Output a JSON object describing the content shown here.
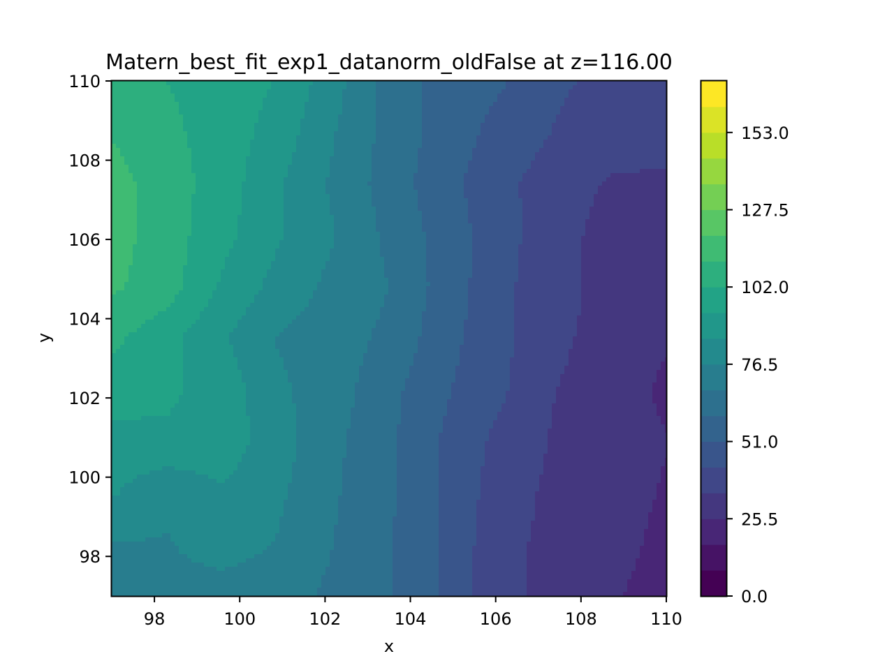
{
  "chart_data": {
    "type": "heatmap",
    "subtype": "filled-contour",
    "title": "Matern_best_fit_exp1_datanorm_oldFalse at z=116.00",
    "xlabel": "x",
    "ylabel": "y",
    "xlim": [
      97,
      110
    ],
    "ylim": [
      97,
      110
    ],
    "x_ticks": [
      98,
      100,
      102,
      104,
      106,
      108,
      110
    ],
    "x_tick_labels": [
      "98",
      "100",
      "102",
      "104",
      "106",
      "108",
      "110"
    ],
    "y_ticks": [
      98,
      100,
      102,
      104,
      106,
      108,
      110
    ],
    "y_tick_labels": [
      "98",
      "100",
      "102",
      "104",
      "106",
      "108",
      "110"
    ],
    "colormap": "viridis",
    "colorbar": {
      "range": [
        0,
        170
      ],
      "levels": [
        0,
        8.5,
        17,
        25.5,
        34,
        42.5,
        51,
        59.5,
        68,
        76.5,
        85,
        93.5,
        102,
        110.5,
        119,
        127.5,
        136,
        144.5,
        153,
        161.5,
        170
      ],
      "ticks": [
        0,
        25.5,
        51,
        76.5,
        102,
        127.5,
        153
      ],
      "tick_labels": [
        "0.0",
        "25.5",
        "51.0",
        "76.5",
        "102.0",
        "127.5",
        "153.0"
      ]
    },
    "grid": false,
    "x": [
      97,
      98.3,
      99.6,
      100.9,
      102.2,
      103.5,
      104.8,
      106.1,
      107.4,
      108.7,
      110
    ],
    "y": [
      97,
      98.3,
      99.6,
      100.9,
      102.2,
      103.5,
      104.8,
      106.1,
      107.4,
      108.7,
      110
    ],
    "z": [
      [
        76,
        74,
        73,
        72,
        66,
        60,
        50,
        36,
        32,
        27,
        20
      ],
      [
        76,
        76,
        80,
        76,
        68,
        60,
        50,
        36,
        32,
        30,
        22
      ],
      [
        86,
        78,
        84,
        78,
        69,
        61,
        50,
        38,
        32,
        32,
        24
      ],
      [
        90,
        92,
        90,
        80,
        70,
        61,
        50,
        40,
        33,
        32,
        26
      ],
      [
        98,
        95,
        90,
        78,
        72,
        62,
        52,
        44,
        34,
        32,
        23
      ],
      [
        104,
        96,
        86,
        76,
        72,
        66,
        54,
        45,
        35,
        32,
        27
      ],
      [
        112,
        106,
        92,
        82,
        74,
        68,
        56,
        45,
        36,
        32,
        28
      ],
      [
        114,
        106,
        96,
        86,
        77,
        66,
        56,
        46,
        37,
        31,
        30
      ],
      [
        114,
        106,
        98,
        86,
        75,
        64,
        54,
        45,
        38,
        33,
        33
      ],
      [
        110,
        104,
        98,
        90,
        77,
        65,
        56,
        48,
        42,
        38,
        36
      ],
      [
        106,
        102,
        98,
        93,
        80,
        64,
        56,
        52,
        44,
        40,
        38
      ]
    ]
  }
}
